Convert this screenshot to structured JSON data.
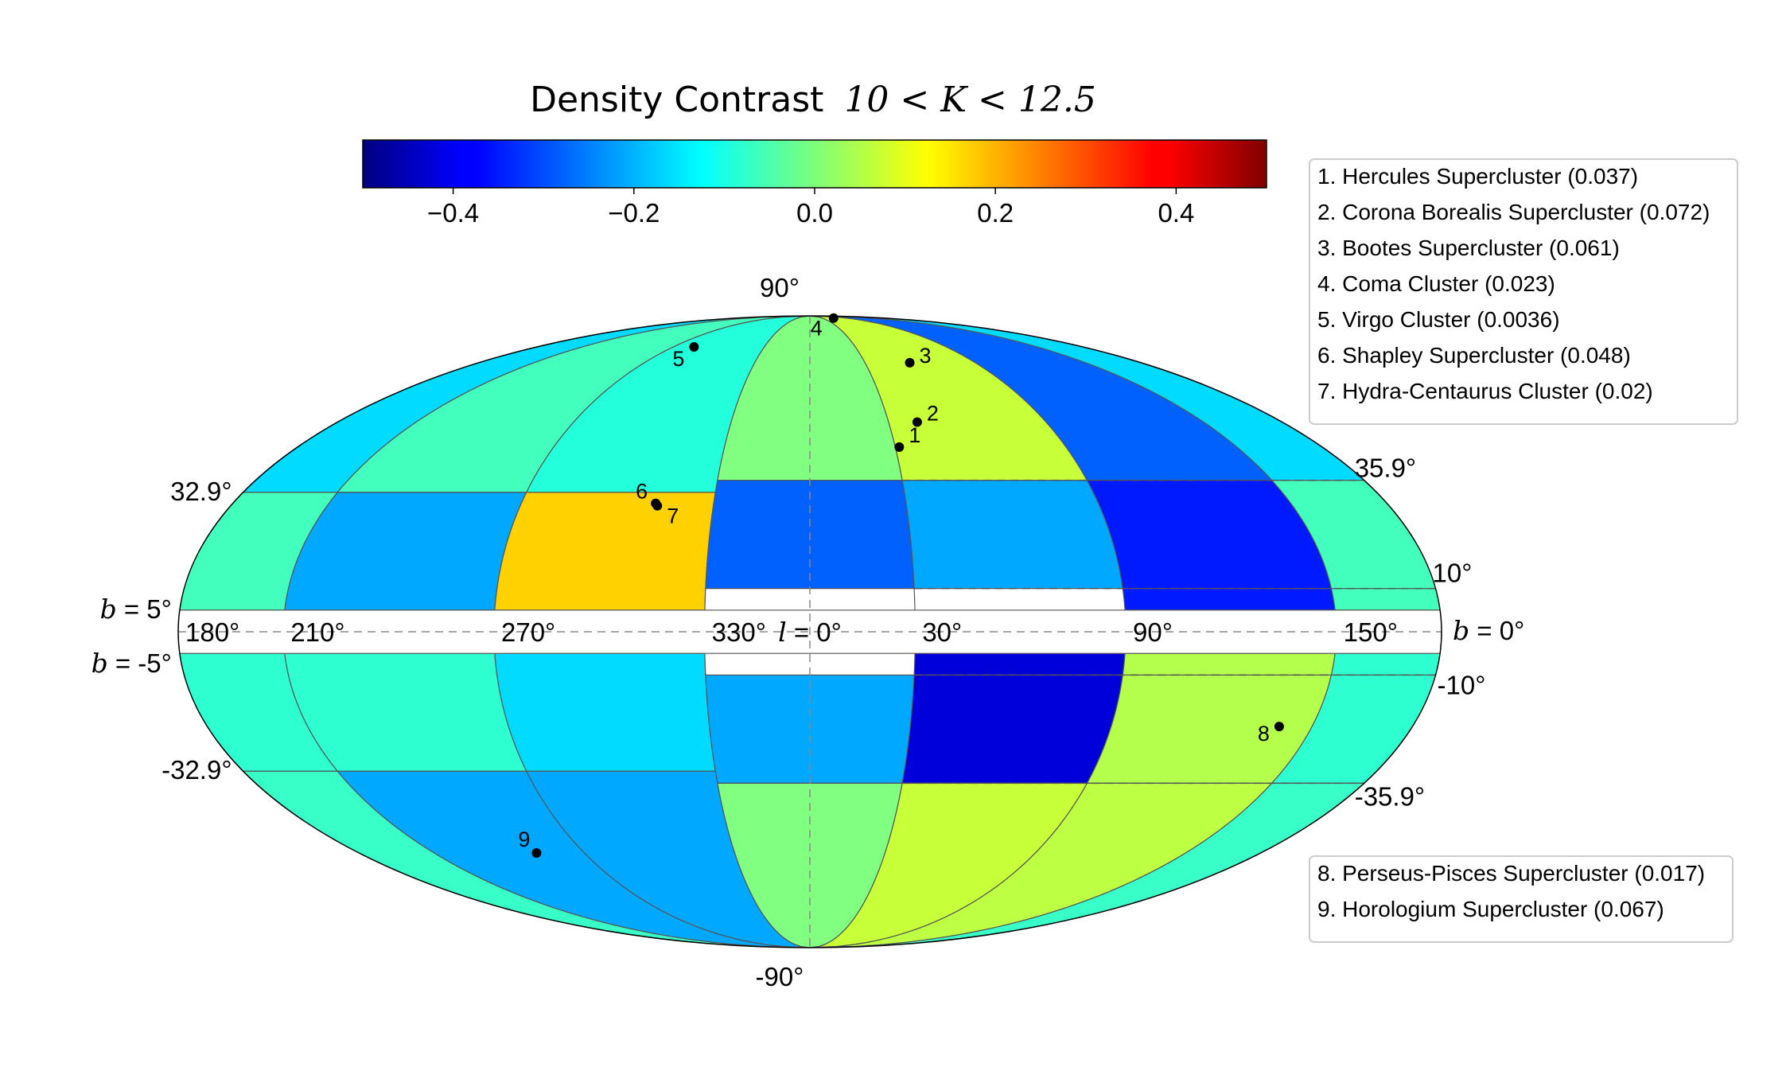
{
  "chart_data": {
    "type": "heatmap",
    "projection": "mollweide",
    "title_prefix": "Density Contrast",
    "title_math": "10 < K < 12.5",
    "colorbar": {
      "colormap": "jet",
      "range": [
        -0.5,
        0.5
      ],
      "ticks": [
        -0.4,
        -0.2,
        0.0,
        0.2,
        0.4
      ],
      "tick_labels": [
        "−0.4",
        "−0.2",
        "0.0",
        "0.2",
        "0.4"
      ]
    },
    "lat_edges_north": [
      90,
      35.9,
      10,
      5
    ],
    "lat_edges_south": [
      -5,
      -10,
      -35.9,
      -90
    ],
    "lat_edges_west_north": [
      90,
      32.9,
      5
    ],
    "lat_edges_west_south": [
      -5,
      -32.9,
      -90
    ],
    "lon_tick_labels": [
      "180°",
      "210°",
      "270°",
      "330°",
      "30°",
      "90°",
      "150°"
    ],
    "center_label": {
      "prefix": "l",
      "value": " = 0°"
    },
    "lat_labels": {
      "top": "90°",
      "bottom": "-90°",
      "west_north": "32.9°",
      "west_south": "-32.9°",
      "east_north_outer": "35.9°",
      "east_north_inner": "10°",
      "east_south_inner": "-10°",
      "east_south_outer": "-35.9°",
      "b_north": {
        "prefix": "b",
        "value": " = 5°"
      },
      "b_south": {
        "prefix": "b",
        "value": " = -5°"
      },
      "b_zero": {
        "prefix": "b",
        "value": " = 0°"
      }
    },
    "cells": [
      {
        "l": [
          -180,
          -150
        ],
        "b": [
          32.9,
          90
        ],
        "value": -0.16
      },
      {
        "l": [
          -150,
          -90
        ],
        "b": [
          32.9,
          90
        ],
        "value": -0.06
      },
      {
        "l": [
          -90,
          -30
        ],
        "b": [
          32.9,
          90
        ],
        "value": -0.09
      },
      {
        "l": [
          -30,
          30
        ],
        "b": [
          35.9,
          90
        ],
        "value": 0.0
      },
      {
        "l": [
          30,
          90
        ],
        "b": [
          35.9,
          90
        ],
        "value": 0.07
      },
      {
        "l": [
          90,
          150
        ],
        "b": [
          35.9,
          90
        ],
        "value": -0.28
      },
      {
        "l": [
          150,
          180
        ],
        "b": [
          35.9,
          90
        ],
        "value": -0.16
      },
      {
        "l": [
          -180,
          -150
        ],
        "b": [
          5,
          32.9
        ],
        "value": -0.06
      },
      {
        "l": [
          -150,
          -90
        ],
        "b": [
          5,
          32.9
        ],
        "value": -0.21
      },
      {
        "l": [
          -90,
          -30
        ],
        "b": [
          5,
          32.9
        ],
        "value": 0.17
      },
      {
        "l": [
          -30,
          30
        ],
        "b": [
          10,
          35.9
        ],
        "value": -0.28
      },
      {
        "l": [
          30,
          90
        ],
        "b": [
          10,
          35.9
        ],
        "value": -0.21
      },
      {
        "l": [
          90,
          150
        ],
        "b": [
          10,
          35.9
        ],
        "value": -0.35
      },
      {
        "l": [
          150,
          180
        ],
        "b": [
          10,
          35.9
        ],
        "value": -0.06
      },
      {
        "l": [
          90,
          150
        ],
        "b": [
          5,
          10
        ],
        "value": -0.35
      },
      {
        "l": [
          150,
          180
        ],
        "b": [
          5,
          10
        ],
        "value": -0.06
      },
      {
        "l": [
          -180,
          -150
        ],
        "b": [
          -32.9,
          -5
        ],
        "value": -0.08
      },
      {
        "l": [
          -150,
          -90
        ],
        "b": [
          -32.9,
          -5
        ],
        "value": -0.08
      },
      {
        "l": [
          -90,
          -30
        ],
        "b": [
          -32.9,
          -5
        ],
        "value": -0.16
      },
      {
        "l": [
          -30,
          30
        ],
        "b": [
          -35.9,
          -10
        ],
        "value": -0.21
      },
      {
        "l": [
          30,
          90
        ],
        "b": [
          -35.9,
          -10
        ],
        "value": -0.41
      },
      {
        "l": [
          90,
          150
        ],
        "b": [
          -35.9,
          -10
        ],
        "value": 0.05
      },
      {
        "l": [
          150,
          180
        ],
        "b": [
          -35.9,
          -10
        ],
        "value": -0.08
      },
      {
        "l": [
          30,
          90
        ],
        "b": [
          -10,
          -5
        ],
        "value": -0.41
      },
      {
        "l": [
          90,
          150
        ],
        "b": [
          -10,
          -5
        ],
        "value": 0.05
      },
      {
        "l": [
          150,
          180
        ],
        "b": [
          -10,
          -5
        ],
        "value": -0.08
      },
      {
        "l": [
          -180,
          -150
        ],
        "b": [
          -90,
          -32.9
        ],
        "value": -0.07
      },
      {
        "l": [
          -150,
          -90
        ],
        "b": [
          -90,
          -32.9
        ],
        "value": -0.21
      },
      {
        "l": [
          -90,
          -30
        ],
        "b": [
          -90,
          -32.9
        ],
        "value": -0.21
      },
      {
        "l": [
          -30,
          30
        ],
        "b": [
          -90,
          -35.9
        ],
        "value": 0.0
      },
      {
        "l": [
          30,
          90
        ],
        "b": [
          -90,
          -35.9
        ],
        "value": 0.07
      },
      {
        "l": [
          90,
          150
        ],
        "b": [
          -90,
          -35.9
        ],
        "value": 0.06
      },
      {
        "l": [
          150,
          180
        ],
        "b": [
          -90,
          -35.9
        ],
        "value": -0.07
      }
    ],
    "masked_cells": [
      {
        "l": [
          -30,
          30
        ],
        "b": [
          -10,
          10
        ]
      },
      {
        "l": [
          -180,
          180
        ],
        "b": [
          -5,
          5
        ]
      }
    ],
    "points": [
      {
        "id": "1",
        "l": 31.4,
        "b": 44.4
      },
      {
        "id": "2",
        "l": 40.9,
        "b": 51.1
      },
      {
        "id": "3",
        "l": 54.3,
        "b": 68.9
      },
      {
        "id": "4",
        "l": 58.1,
        "b": 87.9
      },
      {
        "id": "5",
        "l": -76.4,
        "b": 74.5
      },
      {
        "id": "6",
        "l": -48.1,
        "b": 30.2
      },
      {
        "id": "7",
        "l": -47.4,
        "b": 29.6
      },
      {
        "id": "8",
        "l": 140.2,
        "b": -22.1
      },
      {
        "id": "9",
        "l": -109.1,
        "b": -54.3
      }
    ],
    "legend_top": [
      "1. Hercules Supercluster (0.037)",
      "2. Corona Borealis Supercluster (0.072)",
      "3. Bootes Supercluster (0.061)",
      "4. Coma Cluster (0.023)",
      "5. Virgo Cluster (0.0036)",
      "6. Shapley Supercluster (0.048)",
      "7. Hydra-Centaurus Cluster (0.02)"
    ],
    "legend_bottom": [
      "8. Perseus-Pisces Supercluster (0.017)",
      "9. Horologium Supercluster (0.067)"
    ],
    "grid": true
  }
}
